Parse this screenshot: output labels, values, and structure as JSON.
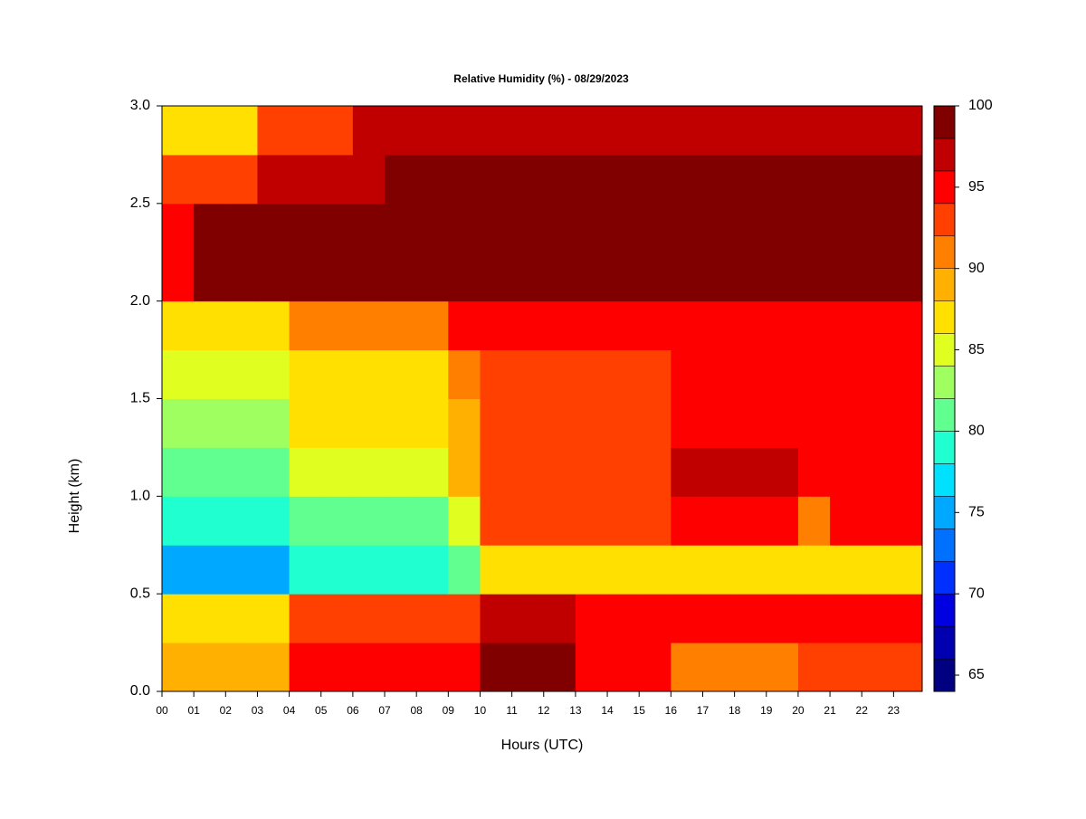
{
  "chart_data": {
    "type": "heatmap",
    "title": "Relative Humidity (%) - 08/29/2023",
    "xlabel": "Hours (UTC)",
    "ylabel": "Height (km)",
    "xbins": [
      0,
      1,
      2,
      3,
      4,
      5,
      6,
      7,
      8,
      9,
      10,
      11,
      12,
      13,
      14,
      15,
      16,
      17,
      18,
      19,
      20,
      21,
      22,
      23,
      23.9
    ],
    "ybins": [
      0,
      0.25,
      0.5,
      0.75,
      1.0,
      1.25,
      1.5,
      1.75,
      2.0,
      2.25,
      2.5,
      2.75,
      3.0
    ],
    "xlim": [
      0,
      23.9
    ],
    "ylim": [
      0,
      3.0
    ],
    "xticks": [
      {
        "value": 0,
        "label": "00"
      },
      {
        "value": 1,
        "label": "01"
      },
      {
        "value": 2,
        "label": "02"
      },
      {
        "value": 3,
        "label": "03"
      },
      {
        "value": 4,
        "label": "04"
      },
      {
        "value": 5,
        "label": "05"
      },
      {
        "value": 6,
        "label": "06"
      },
      {
        "value": 7,
        "label": "07"
      },
      {
        "value": 8,
        "label": "08"
      },
      {
        "value": 9,
        "label": "09"
      },
      10,
      11,
      12,
      13,
      14,
      15,
      16,
      17,
      18,
      19,
      20,
      21,
      22,
      23
    ],
    "yticks": [
      {
        "value": 0,
        "label": "0.0"
      },
      0.5,
      {
        "value": 1,
        "label": "1.0"
      },
      1.5,
      {
        "value": 2,
        "label": "2.0"
      },
      2.5,
      {
        "value": 3,
        "label": "3.0"
      }
    ],
    "z": [
      [
        90,
        90,
        90,
        90,
        95,
        95,
        95,
        95,
        95,
        95,
        99,
        99,
        99,
        96,
        96,
        96,
        92,
        92,
        92,
        92,
        94,
        94,
        94,
        94
      ],
      [
        88,
        88,
        88,
        88,
        94,
        94,
        94,
        94,
        94,
        94,
        98,
        98,
        98,
        96,
        96,
        96,
        96,
        96,
        96,
        96,
        96,
        96,
        96,
        96
      ],
      [
        76,
        76,
        76,
        76,
        80,
        80,
        80,
        80,
        80,
        82,
        88,
        88,
        88,
        88,
        88,
        88,
        88,
        88,
        88,
        88,
        88,
        88,
        88,
        88
      ],
      [
        80,
        80,
        80,
        80,
        82,
        82,
        82,
        82,
        82,
        86,
        93,
        93,
        93,
        93,
        93,
        93,
        96,
        96,
        96,
        96,
        92,
        95,
        95,
        95
      ],
      [
        82,
        82,
        82,
        82,
        86,
        86,
        86,
        86,
        86,
        90,
        94,
        94,
        94,
        94,
        94,
        94,
        98,
        98,
        98,
        98,
        96,
        96,
        96,
        96
      ],
      [
        84,
        84,
        84,
        84,
        87,
        87,
        87,
        87,
        87,
        90,
        94,
        94,
        94,
        94,
        94,
        94,
        95,
        95,
        95,
        95,
        95,
        95,
        95,
        95
      ],
      [
        85,
        85,
        85,
        85,
        88,
        88,
        88,
        88,
        88,
        91,
        93,
        93,
        93,
        93,
        93,
        93,
        96,
        96,
        96,
        96,
        96,
        96,
        96,
        96
      ],
      [
        88,
        88,
        88,
        88,
        91,
        91,
        91,
        91,
        91,
        95,
        95,
        95,
        95,
        95,
        95,
        95,
        95,
        95,
        95,
        95,
        95,
        95,
        95,
        95
      ],
      [
        96,
        99,
        99,
        99,
        99,
        99,
        99,
        99,
        99,
        99,
        99,
        99,
        99,
        99,
        99,
        99,
        99,
        99,
        99,
        99,
        99,
        99,
        99,
        99
      ],
      [
        95,
        99,
        99,
        99,
        99,
        99,
        99,
        99,
        99,
        99,
        99,
        99,
        99,
        99,
        99,
        99,
        99,
        99,
        99,
        99,
        99,
        99,
        99,
        99
      ],
      [
        94,
        94,
        94,
        97,
        97,
        97,
        97,
        99,
        99,
        99,
        99,
        99,
        99,
        99,
        99,
        99,
        99,
        99,
        99,
        99,
        99,
        99,
        99,
        99
      ],
      [
        88,
        88,
        88,
        94,
        94,
        94,
        98,
        98,
        98,
        98,
        98,
        98,
        98,
        98,
        98,
        98,
        98,
        98,
        98,
        98,
        98,
        98,
        98,
        98
      ]
    ],
    "colorbar": {
      "clim": [
        64,
        100
      ],
      "ticks": [
        65,
        70,
        75,
        80,
        85,
        90,
        95,
        100
      ],
      "levels": [
        64,
        66,
        68,
        70,
        72,
        74,
        76,
        78,
        80,
        82,
        84,
        86,
        88,
        90,
        92,
        94,
        96,
        98,
        100
      ],
      "colors": [
        "#000080",
        "#0000b0",
        "#0000e0",
        "#0030ff",
        "#0070ff",
        "#00a8ff",
        "#00e0ff",
        "#20ffd0",
        "#60ff90",
        "#a0ff60",
        "#e0ff20",
        "#ffe000",
        "#ffb000",
        "#ff8000",
        "#ff4000",
        "#ff0000",
        "#c00000",
        "#800000"
      ]
    }
  }
}
